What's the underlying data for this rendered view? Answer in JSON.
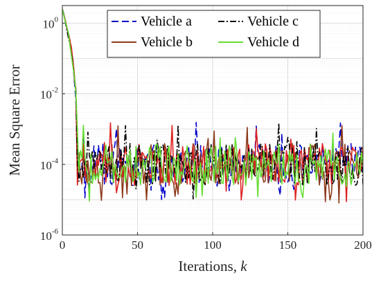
{
  "chart_data": {
    "type": "line",
    "xlabel": "Iterations, ",
    "xlabel_italic": "k",
    "ylabel": "Mean Square Error",
    "xlim": [
      0,
      200
    ],
    "ylim_log10": [
      -6,
      0.5
    ],
    "yscale": "log",
    "grid": true,
    "minor_grid": true,
    "legend_position": "top-right",
    "x_ticks": [
      0,
      50,
      100,
      150,
      200
    ],
    "y_ticks": [
      {
        "base": "10",
        "exp": "0",
        "log": 0
      },
      {
        "base": "10",
        "exp": "-2",
        "log": -2
      },
      {
        "base": "10",
        "exp": "-4",
        "log": -4
      },
      {
        "base": "10",
        "exp": "-6",
        "log": -6
      }
    ],
    "series": [
      {
        "name": "Vehicle a",
        "color": "#0000cc",
        "dash": "10,5",
        "seed": 11
      },
      {
        "name": "Vehicle b",
        "color": "#8b3a1a",
        "dash": "",
        "seed": 23
      },
      {
        "name": "Vehicle c",
        "color": "#000000",
        "dash": "9,3,2,3",
        "seed": 37
      },
      {
        "name": "Vehicle d",
        "color": "#66dd33",
        "dash": "",
        "seed": 53
      }
    ],
    "red_series_color": "#dd2222",
    "transient": {
      "start_log": 0.4,
      "steady_from": 10
    },
    "steady_state": {
      "mean_log": -4.0,
      "spread_log": 0.6
    },
    "points": 201
  }
}
